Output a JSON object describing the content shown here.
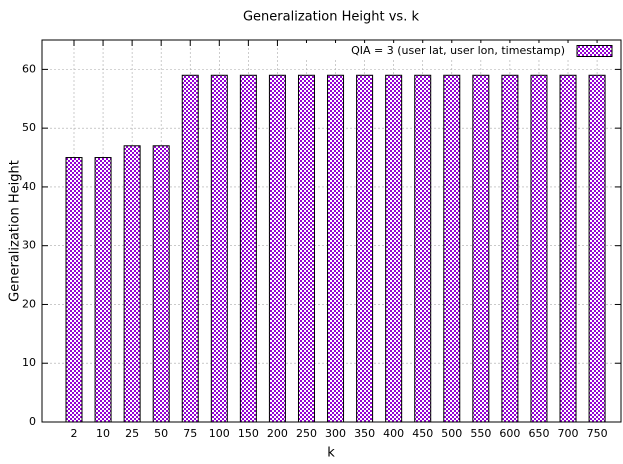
{
  "chart_data": {
    "type": "bar",
    "title": "Generalization Height vs. k",
    "x_label": "k",
    "y_label": "Generalization Height",
    "categories": [
      2,
      10,
      25,
      50,
      75,
      100,
      150,
      200,
      250,
      300,
      350,
      400,
      450,
      500,
      550,
      600,
      650,
      700,
      750
    ],
    "series": [
      {
        "name": "QIA = 3 (user lat, user lon, timestamp)",
        "color": "#9400d3",
        "values": [
          45,
          45,
          47,
          47,
          59,
          59,
          59,
          59,
          59,
          59,
          59,
          59,
          59,
          59,
          59,
          59,
          59,
          59,
          59
        ]
      }
    ],
    "ylim": [
      0,
      65
    ],
    "yticks": [
      0,
      10,
      20,
      30,
      40,
      50,
      60
    ],
    "grid": true,
    "legend": "top-right"
  }
}
